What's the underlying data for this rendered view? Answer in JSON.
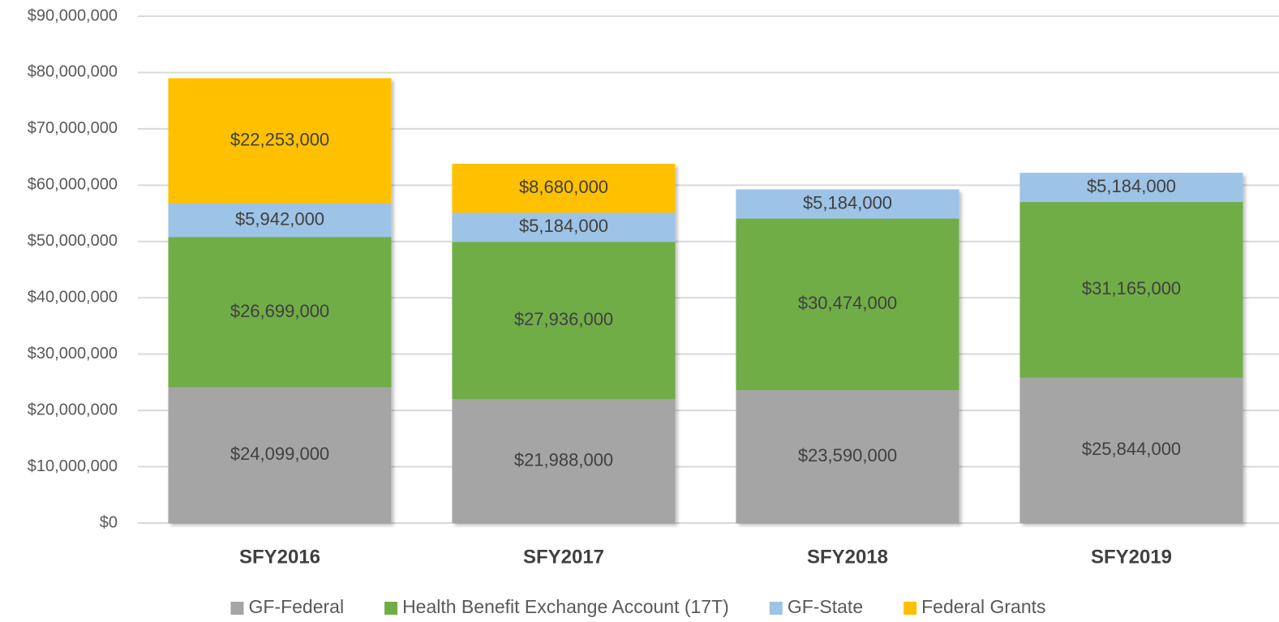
{
  "chart_data": {
    "type": "stacked_bar",
    "categories": [
      "SFY2016",
      "SFY2017",
      "SFY2018",
      "SFY2019"
    ],
    "series": [
      {
        "name": "GF-Federal",
        "color": "#a5a5a5",
        "values": [
          24099000,
          21988000,
          23590000,
          25844000
        ],
        "value_labels": [
          "$24,099,000",
          "$21,988,000",
          "$23,590,000",
          "$25,844,000"
        ]
      },
      {
        "name": "Health Benefit Exchange Account (17T)",
        "color": "#70ad47",
        "values": [
          26699000,
          27936000,
          30474000,
          31165000
        ],
        "value_labels": [
          "$26,699,000",
          "$27,936,000",
          "$30,474,000",
          "$31,165,000"
        ]
      },
      {
        "name": "GF-State",
        "color": "#9dc3e6",
        "values": [
          5942000,
          5184000,
          5184000,
          5184000
        ],
        "value_labels": [
          "$5,942,000",
          "$5,184,000",
          "$5,184,000",
          "$5,184,000"
        ]
      },
      {
        "name": "Federal Grants",
        "color": "#ffc000",
        "values": [
          22253000,
          8680000,
          null,
          null
        ],
        "value_labels": [
          "$22,253,000",
          "$8,680,000",
          null,
          null
        ]
      }
    ],
    "ylim": [
      0,
      90000000
    ],
    "yticks": [
      {
        "value": 0,
        "label": "$0"
      },
      {
        "value": 10000000,
        "label": "$10,000,000"
      },
      {
        "value": 20000000,
        "label": "$20,000,000"
      },
      {
        "value": 30000000,
        "label": "$30,000,000"
      },
      {
        "value": 40000000,
        "label": "$40,000,000"
      },
      {
        "value": 50000000,
        "label": "$50,000,000"
      },
      {
        "value": 60000000,
        "label": "$60,000,000"
      },
      {
        "value": 70000000,
        "label": "$70,000,000"
      },
      {
        "value": 80000000,
        "label": "$80,000,000"
      },
      {
        "value": 90000000,
        "label": "$90,000,000"
      }
    ],
    "grid": true,
    "legend": "bottom"
  }
}
